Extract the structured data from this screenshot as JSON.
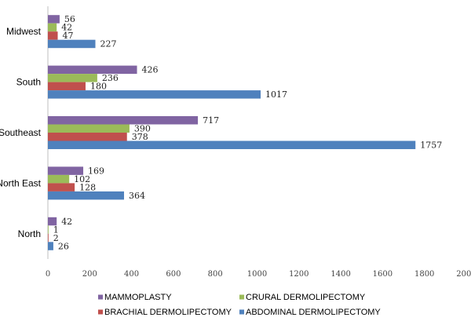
{
  "chart_data": {
    "type": "bar",
    "orientation": "horizontal",
    "categories": [
      "Midwest",
      "South",
      "Southeast",
      "North East",
      "North"
    ],
    "series": [
      {
        "name": "MAMMOPLASTY",
        "color": "#8064a2",
        "values": [
          56,
          426,
          717,
          169,
          42
        ]
      },
      {
        "name": "CRURAL DERMOLIPECTOMY",
        "color": "#9bbb59",
        "values": [
          42,
          236,
          390,
          102,
          1
        ]
      },
      {
        "name": "BRACHIAL DERMOLIPECTOMY",
        "color": "#c0504d",
        "values": [
          47,
          180,
          378,
          128,
          2
        ]
      },
      {
        "name": "ABDOMINAL DERMOLIPECTOMY",
        "color": "#4f81bd",
        "values": [
          227,
          1017,
          1757,
          364,
          26
        ]
      }
    ],
    "x_ticks": [
      "0",
      "200",
      "400",
      "600",
      "800",
      "1000",
      "1200",
      "1400",
      "1600",
      "1800",
      "2000"
    ],
    "xlim": [
      0,
      2000
    ],
    "grid": false,
    "legend_position": "bottom"
  }
}
